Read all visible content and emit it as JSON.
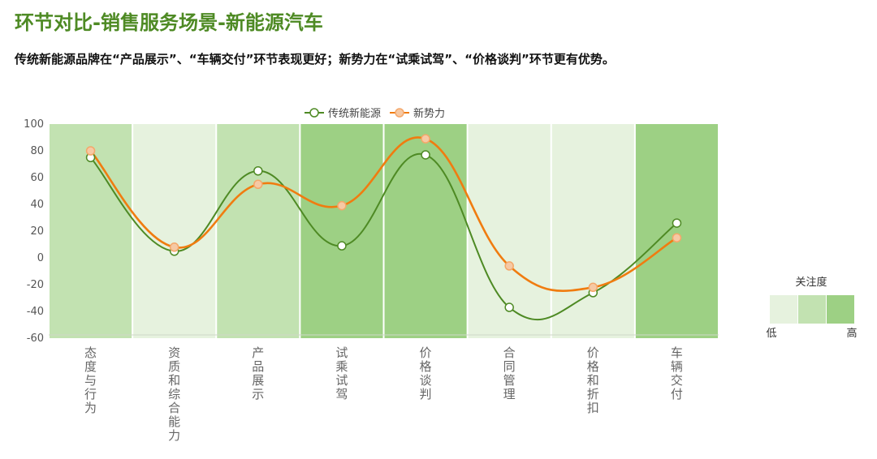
{
  "header": {
    "title": "环节对比-销售服务场景-新能源汽车",
    "subtitle": "传统新能源品牌在“产品展示”、“车辆交付”环节表现更好；新势力在“试乘试驾”、“价格谈判”环节更有优势。"
  },
  "chart_data": {
    "type": "line",
    "categories": [
      "态度与行为",
      "资质和综合能力",
      "产品展示",
      "试乘试驾",
      "价格谈判",
      "合同管理",
      "价格和折扣",
      "车辆交付"
    ],
    "series": [
      {
        "name": "传统新能源",
        "values": [
          75,
          5,
          65,
          9,
          77,
          -37,
          -26,
          26
        ],
        "color": "#4e8a24"
      },
      {
        "name": "新势力",
        "values": [
          80,
          8,
          55,
          39,
          89,
          -6,
          -22,
          15
        ],
        "color": "#f07c10"
      }
    ],
    "ylim": [
      -60,
      100
    ],
    "yticks": [
      100,
      80,
      60,
      40,
      20,
      0,
      -20,
      -40,
      -60
    ],
    "attention_levels": [
      2,
      1,
      2,
      3,
      3,
      1,
      1,
      3
    ],
    "attention_colors": [
      "#e6f2de",
      "#c2e2b1",
      "#9dd084"
    ],
    "visual_map": {
      "title": "关注度",
      "low_label": "低",
      "high_label": "高"
    },
    "legend_position": "top-center",
    "smooth": true
  }
}
